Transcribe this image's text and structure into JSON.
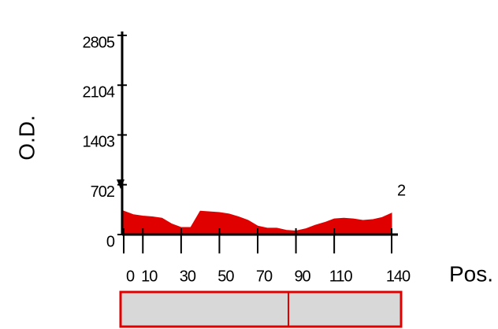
{
  "chart_data": {
    "type": "area",
    "y_label": "O.D.",
    "x_label": "Pos.",
    "annotation": "2",
    "color": "#e00000",
    "x": [
      0,
      5,
      10,
      15,
      20,
      25,
      30,
      35,
      40,
      45,
      50,
      55,
      60,
      65,
      70,
      75,
      80,
      85,
      90,
      95,
      100,
      105,
      110,
      115,
      120,
      125,
      130,
      135,
      140
    ],
    "values": [
      330,
      280,
      260,
      250,
      230,
      150,
      100,
      100,
      330,
      320,
      310,
      290,
      250,
      200,
      120,
      90,
      90,
      60,
      50,
      80,
      130,
      170,
      220,
      230,
      220,
      200,
      210,
      240,
      300
    ],
    "xlim": [
      0,
      140
    ],
    "xticks": [
      0,
      10,
      30,
      50,
      70,
      90,
      110,
      140
    ],
    "ylim": [
      0,
      2805
    ],
    "yticks": [
      0,
      702,
      1403,
      2104,
      2805
    ]
  }
}
